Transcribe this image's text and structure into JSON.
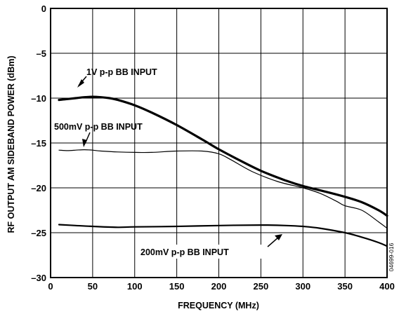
{
  "chart_data": {
    "type": "line",
    "xlabel": "FREQUENCY (MHz)",
    "ylabel": "RF OUTPUT AM SIDEBAND POWER (dBm)",
    "xlim": [
      0,
      400
    ],
    "ylim": [
      -30,
      0
    ],
    "x_ticks": [
      0,
      50,
      100,
      150,
      200,
      250,
      300,
      350,
      400
    ],
    "y_ticks": [
      0,
      -5,
      -10,
      -15,
      -20,
      -25,
      -30
    ],
    "x_tick_labels": [
      "0",
      "50",
      "100",
      "150",
      "200",
      "250",
      "300",
      "350",
      "400"
    ],
    "y_tick_labels": [
      "0",
      "–5",
      "–10",
      "–15",
      "–20",
      "–25",
      "–30"
    ],
    "grid": true,
    "series": [
      {
        "name": "1V p-p BB INPUT",
        "stroke": "thick",
        "x": [
          10,
          20,
          30,
          40,
          50,
          60,
          70,
          80,
          100,
          120,
          150,
          180,
          200,
          220,
          250,
          280,
          300,
          330,
          350,
          370,
          390,
          400
        ],
        "y": [
          -10.2,
          -10.1,
          -10.0,
          -9.9,
          -9.85,
          -9.9,
          -10.0,
          -10.2,
          -10.8,
          -11.6,
          -13.0,
          -14.6,
          -15.7,
          -16.7,
          -18.1,
          -19.2,
          -19.8,
          -20.5,
          -21.0,
          -21.6,
          -22.5,
          -23.1
        ]
      },
      {
        "name": "500mV p-p BB INPUT",
        "stroke": "thin",
        "x": [
          10,
          20,
          30,
          40,
          50,
          60,
          80,
          100,
          120,
          150,
          180,
          200,
          215,
          240,
          270,
          300,
          320,
          340,
          350,
          370,
          390,
          400
        ],
        "y": [
          -15.8,
          -15.85,
          -15.8,
          -15.75,
          -15.8,
          -15.9,
          -16.0,
          -16.05,
          -16.05,
          -15.9,
          -15.9,
          -16.2,
          -16.9,
          -18.2,
          -19.3,
          -20.0,
          -20.6,
          -21.5,
          -22.0,
          -22.5,
          -23.8,
          -24.5
        ]
      },
      {
        "name": "200mV p-p BB INPUT",
        "stroke": "medium",
        "x": [
          10,
          30,
          50,
          80,
          100,
          150,
          200,
          250,
          280,
          300,
          320,
          350,
          370,
          390,
          400
        ],
        "y": [
          -24.1,
          -24.2,
          -24.3,
          -24.4,
          -24.35,
          -24.3,
          -24.2,
          -24.15,
          -24.2,
          -24.3,
          -24.5,
          -25.0,
          -25.5,
          -26.1,
          -26.5
        ]
      }
    ],
    "annotations": {
      "one_volt": "1V p-p BB INPUT",
      "five_hundred_mv": "500mV p-p BB INPUT",
      "two_hundred_mv": "200mV p-p BB INPUT"
    },
    "figure_id": "04699-016"
  }
}
